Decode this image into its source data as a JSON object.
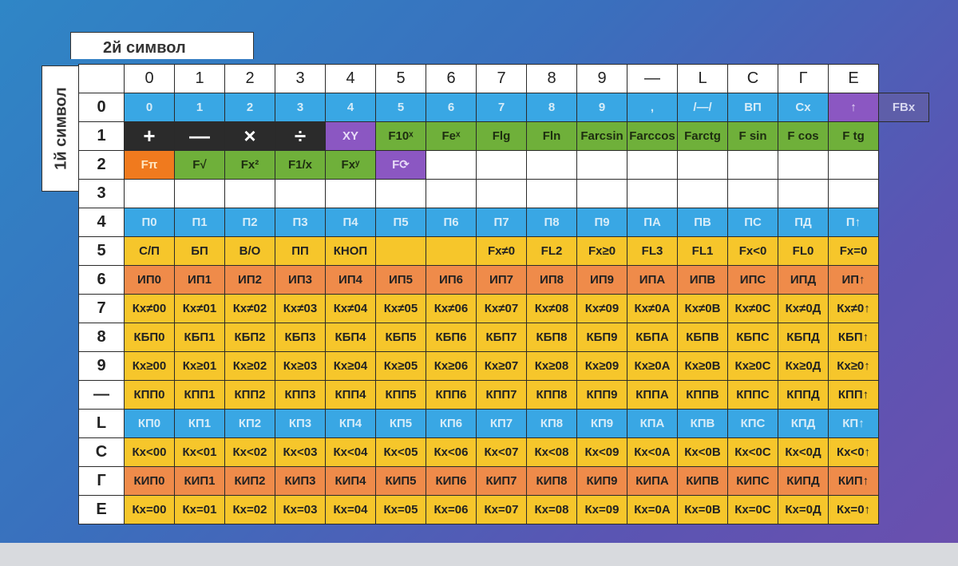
{
  "header": {
    "col_title": "2й символ",
    "row_title": "1й символ"
  },
  "columns": [
    "0",
    "1",
    "2",
    "3",
    "4",
    "5",
    "6",
    "7",
    "8",
    "9",
    "—",
    "L",
    "C",
    "Г",
    "E"
  ],
  "colors": {
    "blue": "#39a7e4",
    "green": "#6fb03a",
    "yellow": "#f6c62b",
    "salmon": "#ef8b4a",
    "orange": "#f07a1e",
    "purple": "#8b57c2"
  },
  "rows": [
    {
      "label": "0",
      "cells": [
        {
          "t": "0",
          "c": "blue"
        },
        {
          "t": "1",
          "c": "blue"
        },
        {
          "t": "2",
          "c": "blue"
        },
        {
          "t": "3",
          "c": "blue"
        },
        {
          "t": "4",
          "c": "blue"
        },
        {
          "t": "5",
          "c": "blue"
        },
        {
          "t": "6",
          "c": "blue"
        },
        {
          "t": "7",
          "c": "blue"
        },
        {
          "t": "8",
          "c": "blue"
        },
        {
          "t": "9",
          "c": "blue"
        },
        {
          "t": ",",
          "c": "blue"
        },
        {
          "t": "/—/",
          "c": "blue"
        },
        {
          "t": "ВП",
          "c": "blue"
        },
        {
          "t": "Cx",
          "c": "blue"
        },
        {
          "t": "↑",
          "c": "purple"
        },
        {
          "t": "FBx",
          "c": "slate"
        }
      ]
    },
    {
      "label": "1",
      "cells": [
        {
          "t": "+",
          "c": "black"
        },
        {
          "t": "—",
          "c": "black"
        },
        {
          "t": "×",
          "c": "black"
        },
        {
          "t": "÷",
          "c": "black"
        },
        {
          "t": "XY",
          "c": "purple"
        },
        {
          "t": "F10ˣ",
          "c": "green"
        },
        {
          "t": "Feˣ",
          "c": "green"
        },
        {
          "t": "Flg",
          "c": "green"
        },
        {
          "t": "Fln",
          "c": "green"
        },
        {
          "t": "Farcsin",
          "c": "green"
        },
        {
          "t": "Farccos",
          "c": "green"
        },
        {
          "t": "Farctg",
          "c": "green"
        },
        {
          "t": "F sin",
          "c": "green"
        },
        {
          "t": "F cos",
          "c": "green"
        },
        {
          "t": "F tg",
          "c": "green"
        }
      ]
    },
    {
      "label": "2",
      "cells": [
        {
          "t": "Fπ",
          "c": "orange"
        },
        {
          "t": "F√",
          "c": "green"
        },
        {
          "t": "Fx²",
          "c": "green"
        },
        {
          "t": "F1/x",
          "c": "green"
        },
        {
          "t": "Fxʸ",
          "c": "green"
        },
        {
          "t": "F⟳",
          "c": "purple"
        },
        {
          "t": "",
          "c": "white"
        },
        {
          "t": "",
          "c": "white"
        },
        {
          "t": "",
          "c": "white"
        },
        {
          "t": "",
          "c": "white"
        },
        {
          "t": "",
          "c": "white"
        },
        {
          "t": "",
          "c": "white"
        },
        {
          "t": "",
          "c": "white"
        },
        {
          "t": "",
          "c": "white"
        },
        {
          "t": "",
          "c": "white"
        }
      ]
    },
    {
      "label": "3",
      "cells": [
        {
          "t": "",
          "c": "white"
        },
        {
          "t": "",
          "c": "white"
        },
        {
          "t": "",
          "c": "white"
        },
        {
          "t": "",
          "c": "white"
        },
        {
          "t": "",
          "c": "white"
        },
        {
          "t": "",
          "c": "white"
        },
        {
          "t": "",
          "c": "white"
        },
        {
          "t": "",
          "c": "white"
        },
        {
          "t": "",
          "c": "white"
        },
        {
          "t": "",
          "c": "white"
        },
        {
          "t": "",
          "c": "white"
        },
        {
          "t": "",
          "c": "white"
        },
        {
          "t": "",
          "c": "white"
        },
        {
          "t": "",
          "c": "white"
        },
        {
          "t": "",
          "c": "white"
        }
      ]
    },
    {
      "label": "4",
      "cells": [
        {
          "t": "П0",
          "c": "blue"
        },
        {
          "t": "П1",
          "c": "blue"
        },
        {
          "t": "П2",
          "c": "blue"
        },
        {
          "t": "П3",
          "c": "blue"
        },
        {
          "t": "П4",
          "c": "blue"
        },
        {
          "t": "П5",
          "c": "blue"
        },
        {
          "t": "П6",
          "c": "blue"
        },
        {
          "t": "П7",
          "c": "blue"
        },
        {
          "t": "П8",
          "c": "blue"
        },
        {
          "t": "П9",
          "c": "blue"
        },
        {
          "t": "ПА",
          "c": "blue"
        },
        {
          "t": "ПВ",
          "c": "blue"
        },
        {
          "t": "ПС",
          "c": "blue"
        },
        {
          "t": "ПД",
          "c": "blue"
        },
        {
          "t": "П↑",
          "c": "blue"
        }
      ]
    },
    {
      "label": "5",
      "cells": [
        {
          "t": "С/П",
          "c": "yellow"
        },
        {
          "t": "БП",
          "c": "yellow"
        },
        {
          "t": "В/О",
          "c": "yellow"
        },
        {
          "t": "ПП",
          "c": "yellow"
        },
        {
          "t": "КНОП",
          "c": "yellow"
        },
        {
          "t": "",
          "c": "yellow"
        },
        {
          "t": "",
          "c": "yellow"
        },
        {
          "t": "Fx≠0",
          "c": "yellow"
        },
        {
          "t": "FL2",
          "c": "yellow"
        },
        {
          "t": "Fx≥0",
          "c": "yellow"
        },
        {
          "t": "FL3",
          "c": "yellow"
        },
        {
          "t": "FL1",
          "c": "yellow"
        },
        {
          "t": "Fx<0",
          "c": "yellow"
        },
        {
          "t": "FL0",
          "c": "yellow"
        },
        {
          "t": "Fx=0",
          "c": "yellow"
        }
      ]
    },
    {
      "label": "6",
      "cells": [
        {
          "t": "ИП0",
          "c": "salmon"
        },
        {
          "t": "ИП1",
          "c": "salmon"
        },
        {
          "t": "ИП2",
          "c": "salmon"
        },
        {
          "t": "ИП3",
          "c": "salmon"
        },
        {
          "t": "ИП4",
          "c": "salmon"
        },
        {
          "t": "ИП5",
          "c": "salmon"
        },
        {
          "t": "ИП6",
          "c": "salmon"
        },
        {
          "t": "ИП7",
          "c": "salmon"
        },
        {
          "t": "ИП8",
          "c": "salmon"
        },
        {
          "t": "ИП9",
          "c": "salmon"
        },
        {
          "t": "ИПА",
          "c": "salmon"
        },
        {
          "t": "ИПВ",
          "c": "salmon"
        },
        {
          "t": "ИПС",
          "c": "salmon"
        },
        {
          "t": "ИПД",
          "c": "salmon"
        },
        {
          "t": "ИП↑",
          "c": "salmon"
        }
      ]
    },
    {
      "label": "7",
      "cells": [
        {
          "t": "Кx≠00",
          "c": "yellow"
        },
        {
          "t": "Кx≠01",
          "c": "yellow"
        },
        {
          "t": "Кx≠02",
          "c": "yellow"
        },
        {
          "t": "Кx≠03",
          "c": "yellow"
        },
        {
          "t": "Кx≠04",
          "c": "yellow"
        },
        {
          "t": "Кx≠05",
          "c": "yellow"
        },
        {
          "t": "Кx≠06",
          "c": "yellow"
        },
        {
          "t": "Кx≠07",
          "c": "yellow"
        },
        {
          "t": "Кx≠08",
          "c": "yellow"
        },
        {
          "t": "Кx≠09",
          "c": "yellow"
        },
        {
          "t": "Кx≠0А",
          "c": "yellow"
        },
        {
          "t": "Кx≠0В",
          "c": "yellow"
        },
        {
          "t": "Кx≠0С",
          "c": "yellow"
        },
        {
          "t": "Кx≠0Д",
          "c": "yellow"
        },
        {
          "t": "Кx≠0↑",
          "c": "yellow"
        }
      ]
    },
    {
      "label": "8",
      "cells": [
        {
          "t": "КБП0",
          "c": "yellow"
        },
        {
          "t": "КБП1",
          "c": "yellow"
        },
        {
          "t": "КБП2",
          "c": "yellow"
        },
        {
          "t": "КБП3",
          "c": "yellow"
        },
        {
          "t": "КБП4",
          "c": "yellow"
        },
        {
          "t": "КБП5",
          "c": "yellow"
        },
        {
          "t": "КБП6",
          "c": "yellow"
        },
        {
          "t": "КБП7",
          "c": "yellow"
        },
        {
          "t": "КБП8",
          "c": "yellow"
        },
        {
          "t": "КБП9",
          "c": "yellow"
        },
        {
          "t": "КБПА",
          "c": "yellow"
        },
        {
          "t": "КБПВ",
          "c": "yellow"
        },
        {
          "t": "КБПС",
          "c": "yellow"
        },
        {
          "t": "КБПД",
          "c": "yellow"
        },
        {
          "t": "КБП↑",
          "c": "yellow"
        }
      ]
    },
    {
      "label": "9",
      "cells": [
        {
          "t": "Кx≥00",
          "c": "yellow"
        },
        {
          "t": "Кx≥01",
          "c": "yellow"
        },
        {
          "t": "Кx≥02",
          "c": "yellow"
        },
        {
          "t": "Кx≥03",
          "c": "yellow"
        },
        {
          "t": "Кx≥04",
          "c": "yellow"
        },
        {
          "t": "Кx≥05",
          "c": "yellow"
        },
        {
          "t": "Кx≥06",
          "c": "yellow"
        },
        {
          "t": "Кx≥07",
          "c": "yellow"
        },
        {
          "t": "Кx≥08",
          "c": "yellow"
        },
        {
          "t": "Кx≥09",
          "c": "yellow"
        },
        {
          "t": "Кx≥0А",
          "c": "yellow"
        },
        {
          "t": "Кx≥0В",
          "c": "yellow"
        },
        {
          "t": "Кx≥0С",
          "c": "yellow"
        },
        {
          "t": "Кx≥0Д",
          "c": "yellow"
        },
        {
          "t": "Кx≥0↑",
          "c": "yellow"
        }
      ]
    },
    {
      "label": "—",
      "cells": [
        {
          "t": "КПП0",
          "c": "yellow"
        },
        {
          "t": "КПП1",
          "c": "yellow"
        },
        {
          "t": "КПП2",
          "c": "yellow"
        },
        {
          "t": "КПП3",
          "c": "yellow"
        },
        {
          "t": "КПП4",
          "c": "yellow"
        },
        {
          "t": "КПП5",
          "c": "yellow"
        },
        {
          "t": "КПП6",
          "c": "yellow"
        },
        {
          "t": "КПП7",
          "c": "yellow"
        },
        {
          "t": "КПП8",
          "c": "yellow"
        },
        {
          "t": "КПП9",
          "c": "yellow"
        },
        {
          "t": "КППА",
          "c": "yellow"
        },
        {
          "t": "КППВ",
          "c": "yellow"
        },
        {
          "t": "КППС",
          "c": "yellow"
        },
        {
          "t": "КППД",
          "c": "yellow"
        },
        {
          "t": "КПП↑",
          "c": "yellow"
        }
      ]
    },
    {
      "label": "L",
      "cells": [
        {
          "t": "КП0",
          "c": "blue"
        },
        {
          "t": "КП1",
          "c": "blue"
        },
        {
          "t": "КП2",
          "c": "blue"
        },
        {
          "t": "КП3",
          "c": "blue"
        },
        {
          "t": "КП4",
          "c": "blue"
        },
        {
          "t": "КП5",
          "c": "blue"
        },
        {
          "t": "КП6",
          "c": "blue"
        },
        {
          "t": "КП7",
          "c": "blue"
        },
        {
          "t": "КП8",
          "c": "blue"
        },
        {
          "t": "КП9",
          "c": "blue"
        },
        {
          "t": "КПА",
          "c": "blue"
        },
        {
          "t": "КПВ",
          "c": "blue"
        },
        {
          "t": "КПС",
          "c": "blue"
        },
        {
          "t": "КПД",
          "c": "blue"
        },
        {
          "t": "КП↑",
          "c": "blue"
        }
      ]
    },
    {
      "label": "C",
      "cells": [
        {
          "t": "Кx<00",
          "c": "yellow"
        },
        {
          "t": "Кx<01",
          "c": "yellow"
        },
        {
          "t": "Кx<02",
          "c": "yellow"
        },
        {
          "t": "Кx<03",
          "c": "yellow"
        },
        {
          "t": "Кx<04",
          "c": "yellow"
        },
        {
          "t": "Кx<05",
          "c": "yellow"
        },
        {
          "t": "Кx<06",
          "c": "yellow"
        },
        {
          "t": "Кx<07",
          "c": "yellow"
        },
        {
          "t": "Кx<08",
          "c": "yellow"
        },
        {
          "t": "Кx<09",
          "c": "yellow"
        },
        {
          "t": "Кx<0А",
          "c": "yellow"
        },
        {
          "t": "Кx<0В",
          "c": "yellow"
        },
        {
          "t": "Кx<0С",
          "c": "yellow"
        },
        {
          "t": "Кx<0Д",
          "c": "yellow"
        },
        {
          "t": "Кx<0↑",
          "c": "yellow"
        }
      ]
    },
    {
      "label": "Г",
      "cells": [
        {
          "t": "КИП0",
          "c": "salmon"
        },
        {
          "t": "КИП1",
          "c": "salmon"
        },
        {
          "t": "КИП2",
          "c": "salmon"
        },
        {
          "t": "КИП3",
          "c": "salmon"
        },
        {
          "t": "КИП4",
          "c": "salmon"
        },
        {
          "t": "КИП5",
          "c": "salmon"
        },
        {
          "t": "КИП6",
          "c": "salmon"
        },
        {
          "t": "КИП7",
          "c": "salmon"
        },
        {
          "t": "КИП8",
          "c": "salmon"
        },
        {
          "t": "КИП9",
          "c": "salmon"
        },
        {
          "t": "КИПА",
          "c": "salmon"
        },
        {
          "t": "КИПВ",
          "c": "salmon"
        },
        {
          "t": "КИПС",
          "c": "salmon"
        },
        {
          "t": "КИПД",
          "c": "salmon"
        },
        {
          "t": "КИП↑",
          "c": "salmon"
        }
      ]
    },
    {
      "label": "E",
      "cells": [
        {
          "t": "Кx=00",
          "c": "yellow"
        },
        {
          "t": "Кx=01",
          "c": "yellow"
        },
        {
          "t": "Кx=02",
          "c": "yellow"
        },
        {
          "t": "Кx=03",
          "c": "yellow"
        },
        {
          "t": "Кx=04",
          "c": "yellow"
        },
        {
          "t": "Кx=05",
          "c": "yellow"
        },
        {
          "t": "Кx=06",
          "c": "yellow"
        },
        {
          "t": "Кx=07",
          "c": "yellow"
        },
        {
          "t": "Кx=08",
          "c": "yellow"
        },
        {
          "t": "Кx=09",
          "c": "yellow"
        },
        {
          "t": "Кx=0А",
          "c": "yellow"
        },
        {
          "t": "Кx=0В",
          "c": "yellow"
        },
        {
          "t": "Кx=0С",
          "c": "yellow"
        },
        {
          "t": "Кx=0Д",
          "c": "yellow"
        },
        {
          "t": "Кx=0↑",
          "c": "yellow"
        }
      ]
    }
  ]
}
